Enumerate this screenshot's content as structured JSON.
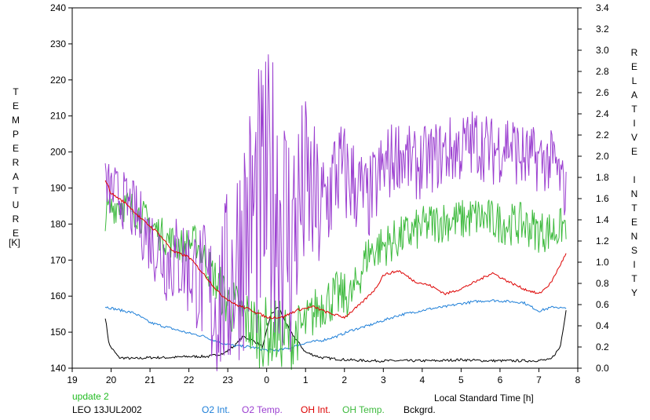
{
  "chart_data": {
    "type": "line",
    "xlabel": "Local Standard Time [h]",
    "x_ticks": [
      "19",
      "20",
      "21",
      "22",
      "23",
      "0",
      "1",
      "2",
      "3",
      "4",
      "5",
      "6",
      "7",
      "8"
    ],
    "xlim": [
      19,
      32
    ],
    "left_axis": {
      "label_letters": [
        "T",
        "E",
        "M",
        "P",
        "E",
        "R",
        "A",
        "T",
        "U",
        "R",
        "E"
      ],
      "unit": "[K]",
      "ylim": [
        140,
        240
      ],
      "ticks": [
        "140",
        "150",
        "160",
        "170",
        "180",
        "190",
        "200",
        "210",
        "220",
        "230",
        "240"
      ]
    },
    "right_axis": {
      "label_letters": [
        "R",
        "E",
        "L",
        "A",
        "T",
        "I",
        "V",
        "E",
        "",
        "I",
        "N",
        "T",
        "E",
        "N",
        "S",
        "I",
        "T",
        "Y"
      ],
      "ylim": [
        0.0,
        3.4
      ],
      "ticks": [
        "0.0",
        "0.2",
        "0.4",
        "0.6",
        "0.8",
        "1.0",
        "1.2",
        "1.4",
        "1.6",
        "1.8",
        "2.0",
        "2.2",
        "2.4",
        "2.6",
        "2.8",
        "3.0",
        "3.2",
        "3.4"
      ]
    },
    "annotations": {
      "update": "update 2",
      "station": "LEO 13JUL2002"
    },
    "legend": [
      "O2 Int.",
      "O2 Temp.",
      "OH Int.",
      "OH Temp.",
      "Bckgrd."
    ],
    "series": [
      {
        "name": "O2 Int.",
        "axis": "right",
        "color": "#1e7fd8",
        "x": [
          19.85,
          20.2,
          20.6,
          21.0,
          21.5,
          22.0,
          22.4,
          22.8,
          23.2,
          23.6,
          24.0,
          24.3,
          24.6,
          25.0,
          25.4,
          25.8,
          26.2,
          26.6,
          27.0,
          27.4,
          27.8,
          28.2,
          28.6,
          29.0,
          29.4,
          29.8,
          30.2,
          30.6,
          31.0,
          31.4,
          31.7
        ],
        "y": [
          0.58,
          0.55,
          0.52,
          0.43,
          0.38,
          0.33,
          0.3,
          0.24,
          0.21,
          0.2,
          0.17,
          0.17,
          0.19,
          0.24,
          0.26,
          0.3,
          0.36,
          0.4,
          0.45,
          0.5,
          0.53,
          0.56,
          0.58,
          0.61,
          0.63,
          0.64,
          0.63,
          0.62,
          0.54,
          0.58,
          0.56
        ]
      },
      {
        "name": "O2 Temp.",
        "axis": "left",
        "color": "#9b3fd0",
        "x": [
          19.85,
          20.2,
          20.6,
          21.0,
          21.4,
          21.8,
          22.2,
          22.6,
          23.0,
          23.4,
          23.8,
          24.2,
          24.6,
          25.0,
          25.4,
          25.8,
          26.2,
          26.6,
          27.0,
          27.4,
          27.8,
          28.2,
          28.6,
          29.0,
          29.4,
          29.8,
          30.2,
          30.6,
          31.0,
          31.4,
          31.7
        ],
        "y": [
          190,
          188,
          183,
          176,
          170,
          170,
          166,
          158,
          162,
          178,
          185,
          190,
          175,
          190,
          182,
          195,
          192,
          186,
          195,
          200,
          196,
          198,
          200,
          201,
          203,
          200,
          203,
          198,
          198,
          197,
          188
        ],
        "spread": [
          8,
          8,
          9,
          10,
          12,
          14,
          16,
          22,
          28,
          34,
          40,
          40,
          38,
          26,
          20,
          16,
          14,
          12,
          12,
          10,
          10,
          10,
          10,
          10,
          10,
          10,
          10,
          10,
          9,
          9,
          8
        ]
      },
      {
        "name": "OH Int.",
        "axis": "right",
        "color": "#dd0000",
        "x": [
          19.85,
          20.0,
          20.4,
          20.8,
          21.2,
          21.6,
          22.0,
          22.4,
          22.8,
          23.2,
          23.6,
          24.0,
          24.4,
          24.8,
          25.2,
          25.6,
          26.0,
          26.4,
          26.8,
          27.0,
          27.4,
          27.8,
          28.2,
          28.6,
          29.0,
          29.4,
          29.8,
          30.2,
          30.6,
          31.0,
          31.3,
          31.7
        ],
        "y": [
          1.78,
          1.65,
          1.55,
          1.4,
          1.28,
          1.1,
          1.05,
          0.88,
          0.7,
          0.6,
          0.55,
          0.48,
          0.48,
          0.55,
          0.58,
          0.52,
          0.48,
          0.6,
          0.75,
          0.88,
          0.92,
          0.82,
          0.78,
          0.7,
          0.75,
          0.82,
          0.9,
          0.82,
          0.75,
          0.7,
          0.8,
          1.08
        ]
      },
      {
        "name": "OH Temp.",
        "axis": "left",
        "color": "#3dba3d",
        "x": [
          19.85,
          20.2,
          20.6,
          21.0,
          21.4,
          21.8,
          22.2,
          22.6,
          23.0,
          23.4,
          23.8,
          24.2,
          24.6,
          25.0,
          25.4,
          25.8,
          26.2,
          26.6,
          27.0,
          27.4,
          27.8,
          28.2,
          28.6,
          29.0,
          29.4,
          29.8,
          30.2,
          30.6,
          31.0,
          31.4,
          31.7
        ],
        "y": [
          183,
          186,
          184,
          180,
          176,
          174,
          175,
          166,
          158,
          154,
          150,
          150,
          148,
          152,
          158,
          160,
          160,
          172,
          174,
          176,
          178,
          180,
          181,
          181,
          182,
          181,
          180,
          180,
          178,
          178,
          180
        ],
        "spread": [
          5,
          5,
          5,
          5,
          5,
          5,
          5,
          6,
          8,
          9,
          10,
          10,
          9,
          7,
          7,
          7,
          6,
          6,
          6,
          6,
          6,
          6,
          6,
          6,
          6,
          6,
          6,
          6,
          6,
          6,
          5
        ]
      },
      {
        "name": "Bckgrd.",
        "axis": "right",
        "color": "#000000",
        "x": [
          19.85,
          19.95,
          20.2,
          20.6,
          21.0,
          21.5,
          22.0,
          22.5,
          22.9,
          23.2,
          23.4,
          23.7,
          23.9,
          24.1,
          24.3,
          24.6,
          25.0,
          25.4,
          26.0,
          26.6,
          27.2,
          27.8,
          28.4,
          29.0,
          29.6,
          30.2,
          30.8,
          31.3,
          31.55,
          31.7
        ],
        "y": [
          0.48,
          0.22,
          0.1,
          0.09,
          0.1,
          0.1,
          0.11,
          0.11,
          0.14,
          0.22,
          0.3,
          0.25,
          0.2,
          0.5,
          0.58,
          0.35,
          0.15,
          0.1,
          0.08,
          0.07,
          0.07,
          0.07,
          0.07,
          0.08,
          0.07,
          0.07,
          0.07,
          0.08,
          0.2,
          0.55
        ]
      }
    ]
  }
}
